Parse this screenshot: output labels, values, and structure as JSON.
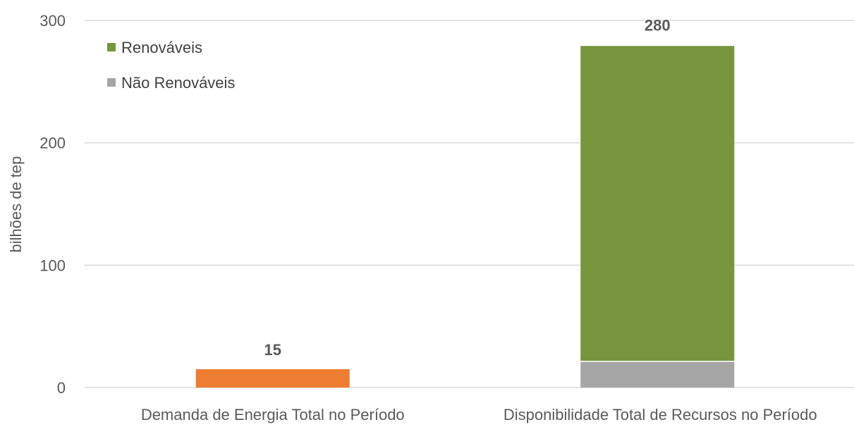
{
  "chart_data": {
    "type": "bar",
    "stacked": true,
    "ylabel": "bilhões de tep",
    "ylim": [
      0,
      300
    ],
    "yticks": [
      0,
      100,
      200,
      300
    ],
    "grid": true,
    "legend_position": "top-left",
    "categories": [
      "Demanda de Energia Total no Período",
      "Disponibilidade Total de Recursos no Período"
    ],
    "series": [
      {
        "name": "",
        "color": "#ed7d31",
        "values": [
          15,
          null
        ]
      },
      {
        "name": "Não Renováveis",
        "color": "#a5a5a5",
        "values": [
          null,
          21
        ]
      },
      {
        "name": "Renováveis",
        "color": "#76953d",
        "values": [
          null,
          259
        ]
      }
    ],
    "data_labels": [
      {
        "category_index": 0,
        "text": "15",
        "value": 15
      },
      {
        "category_index": 1,
        "text": "280",
        "value": 280
      }
    ],
    "legend": [
      {
        "label": "Renováveis",
        "color": "#76953d"
      },
      {
        "label": "Não Renováveis",
        "color": "#a5a5a5"
      }
    ],
    "colors": {
      "grid": "#d9d9d9",
      "text": "#595959"
    }
  }
}
